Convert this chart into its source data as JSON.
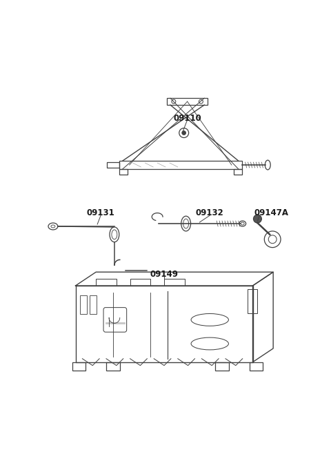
{
  "background_color": "#ffffff",
  "line_color": "#404040",
  "label_color": "#1a1a1a",
  "figsize": [
    4.8,
    6.55
  ],
  "dpi": 100,
  "label_fontsize": 8.5
}
